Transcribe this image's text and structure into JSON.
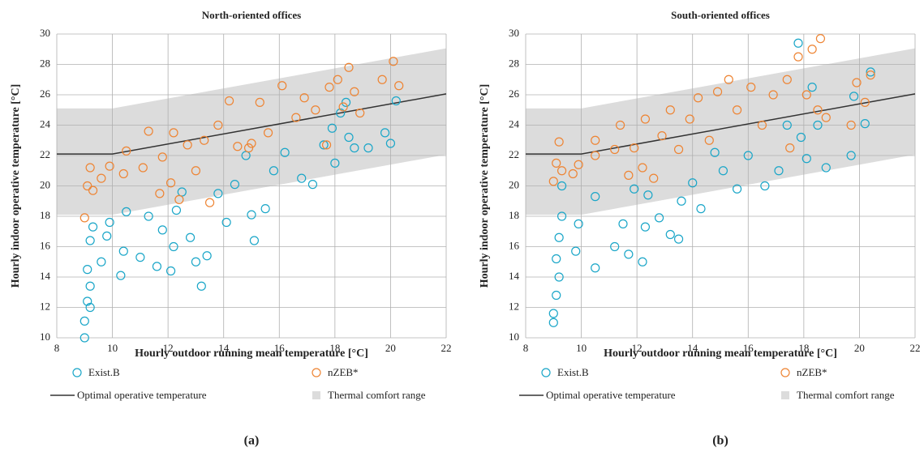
{
  "chart_data": [
    {
      "type": "scatter",
      "title": "North-oriented offices",
      "xlabel": "Hourly outdoor running mean temperature [°C]",
      "ylabel": "Hourly indoor operative temperature [°C]",
      "panel_label": "(a)",
      "xlim": [
        8,
        22
      ],
      "ylim": [
        10,
        30
      ],
      "xticks": [
        8,
        10,
        12,
        14,
        16,
        18,
        20,
        22
      ],
      "yticks": [
        10,
        12,
        14,
        16,
        18,
        20,
        22,
        24,
        26,
        28,
        30
      ],
      "grid": true,
      "series": [
        {
          "name": "Exist.B",
          "color": "#1aa6c8",
          "x": [
            9.0,
            9.0,
            9.1,
            9.2,
            9.1,
            9.2,
            9.3,
            9.2,
            9.6,
            9.8,
            9.9,
            10.3,
            10.4,
            10.5,
            11.0,
            11.3,
            11.6,
            11.8,
            12.1,
            12.2,
            12.3,
            12.5,
            12.8,
            13.0,
            13.2,
            13.4,
            13.8,
            14.1,
            14.4,
            14.8,
            15.0,
            15.1,
            15.5,
            15.8,
            16.2,
            16.8,
            17.2,
            17.6,
            18.0,
            18.2,
            18.4,
            18.5,
            18.7,
            19.8,
            20.2,
            20.0,
            19.2,
            17.9
          ],
          "values": [
            10.0,
            11.1,
            12.4,
            13.4,
            14.5,
            16.4,
            17.3,
            12.0,
            15.0,
            16.7,
            17.6,
            14.1,
            15.7,
            18.3,
            15.3,
            18.0,
            14.7,
            17.1,
            14.4,
            16.0,
            18.4,
            19.6,
            16.6,
            15.0,
            13.4,
            15.4,
            19.5,
            17.6,
            20.1,
            22.0,
            18.1,
            16.4,
            18.5,
            21.0,
            22.2,
            20.5,
            20.1,
            22.7,
            21.5,
            24.8,
            25.5,
            23.2,
            22.5,
            23.5,
            25.6,
            22.8,
            22.5,
            23.8
          ]
        },
        {
          "name": "nZEB*",
          "color": "#ee8433",
          "x": [
            9.0,
            9.1,
            9.2,
            9.3,
            9.6,
            9.9,
            10.5,
            10.4,
            11.1,
            11.3,
            11.7,
            11.8,
            12.1,
            12.2,
            12.4,
            12.7,
            13.0,
            13.3,
            13.5,
            13.8,
            14.2,
            14.5,
            14.9,
            15.3,
            15.6,
            16.1,
            16.6,
            16.9,
            17.3,
            17.8,
            18.1,
            18.3,
            18.5,
            18.7,
            18.9,
            19.7,
            20.1,
            20.3,
            17.7,
            15.0
          ],
          "values": [
            17.9,
            20.0,
            21.2,
            19.7,
            20.5,
            21.3,
            22.3,
            20.8,
            21.2,
            23.6,
            19.5,
            21.9,
            20.2,
            23.5,
            19.1,
            22.7,
            21.0,
            23.0,
            18.9,
            24.0,
            25.6,
            22.6,
            22.5,
            25.5,
            23.5,
            26.6,
            24.5,
            25.8,
            25.0,
            26.5,
            27.0,
            25.2,
            27.8,
            26.2,
            24.8,
            27.0,
            28.2,
            26.6,
            22.7,
            22.8
          ]
        }
      ],
      "optimal": {
        "name": "Optimal operative temperature",
        "color": "#333333",
        "x": [
          8,
          10,
          22
        ],
        "values": [
          22.1,
          22.1,
          26.06
        ]
      },
      "comfort": {
        "name": "Thermal comfort range",
        "color": "#dcdcdc",
        "x": [
          8,
          10,
          22
        ],
        "lower": [
          18.1,
          18.1,
          22.06
        ],
        "upper": [
          25.1,
          25.1,
          29.06
        ]
      }
    },
    {
      "type": "scatter",
      "title": "South-oriented offices",
      "xlabel": "Hourly outdoor running mean temperature [°C]",
      "ylabel": "Hourly indoor operative temperature [°C]",
      "panel_label": "(b)",
      "xlim": [
        8,
        22
      ],
      "ylim": [
        10,
        30
      ],
      "xticks": [
        8,
        10,
        12,
        14,
        16,
        18,
        20,
        22
      ],
      "yticks": [
        10,
        12,
        14,
        16,
        18,
        20,
        22,
        24,
        26,
        28,
        30
      ],
      "grid": true,
      "series": [
        {
          "name": "Exist.B",
          "color": "#1aa6c8",
          "x": [
            9.0,
            9.0,
            9.1,
            9.2,
            9.1,
            9.2,
            9.3,
            9.3,
            9.8,
            9.9,
            10.5,
            10.5,
            11.2,
            11.5,
            11.7,
            11.9,
            12.2,
            12.3,
            12.4,
            12.8,
            13.2,
            13.5,
            13.6,
            14.0,
            14.3,
            14.8,
            15.1,
            15.6,
            16.0,
            16.6,
            17.1,
            17.4,
            17.9,
            18.1,
            18.3,
            18.5,
            18.8,
            19.7,
            19.8,
            20.2,
            20.4,
            17.8
          ],
          "values": [
            11.0,
            11.6,
            12.8,
            14.0,
            15.2,
            16.6,
            18.0,
            20.0,
            15.7,
            17.5,
            14.6,
            19.3,
            16.0,
            17.5,
            15.5,
            19.8,
            15.0,
            17.3,
            19.4,
            17.9,
            16.8,
            16.5,
            19.0,
            20.2,
            18.5,
            22.2,
            21.0,
            19.8,
            22.0,
            20.0,
            21.0,
            24.0,
            23.2,
            21.8,
            26.5,
            24.0,
            21.2,
            22.0,
            25.9,
            24.1,
            27.5,
            29.4
          ]
        },
        {
          "name": "nZEB*",
          "color": "#ee8433",
          "x": [
            9.0,
            9.1,
            9.2,
            9.3,
            9.7,
            9.9,
            10.5,
            10.5,
            11.2,
            11.4,
            11.7,
            11.9,
            12.2,
            12.3,
            12.6,
            12.9,
            13.2,
            13.5,
            13.9,
            14.2,
            14.6,
            14.9,
            15.3,
            15.6,
            16.1,
            16.5,
            16.9,
            17.4,
            17.8,
            18.1,
            18.3,
            18.5,
            18.6,
            18.8,
            19.7,
            19.9,
            20.2,
            20.4,
            17.5
          ],
          "values": [
            20.3,
            21.5,
            22.9,
            21.0,
            20.8,
            21.4,
            22.0,
            23.0,
            22.4,
            24.0,
            20.7,
            22.5,
            21.2,
            24.4,
            20.5,
            23.3,
            25.0,
            22.4,
            24.4,
            25.8,
            23.0,
            26.2,
            27.0,
            25.0,
            26.5,
            24.0,
            26.0,
            27.0,
            28.5,
            26.0,
            29.0,
            25.0,
            29.7,
            24.5,
            24.0,
            26.8,
            25.5,
            27.3,
            22.5
          ]
        }
      ],
      "optimal": {
        "name": "Optimal operative temperature",
        "color": "#333333",
        "x": [
          8,
          10,
          22
        ],
        "values": [
          22.1,
          22.1,
          26.06
        ]
      },
      "comfort": {
        "name": "Thermal comfort range",
        "color": "#dcdcdc",
        "x": [
          8,
          10,
          22
        ],
        "lower": [
          18.1,
          18.1,
          22.06
        ],
        "upper": [
          25.1,
          25.1,
          29.06
        ]
      }
    }
  ]
}
